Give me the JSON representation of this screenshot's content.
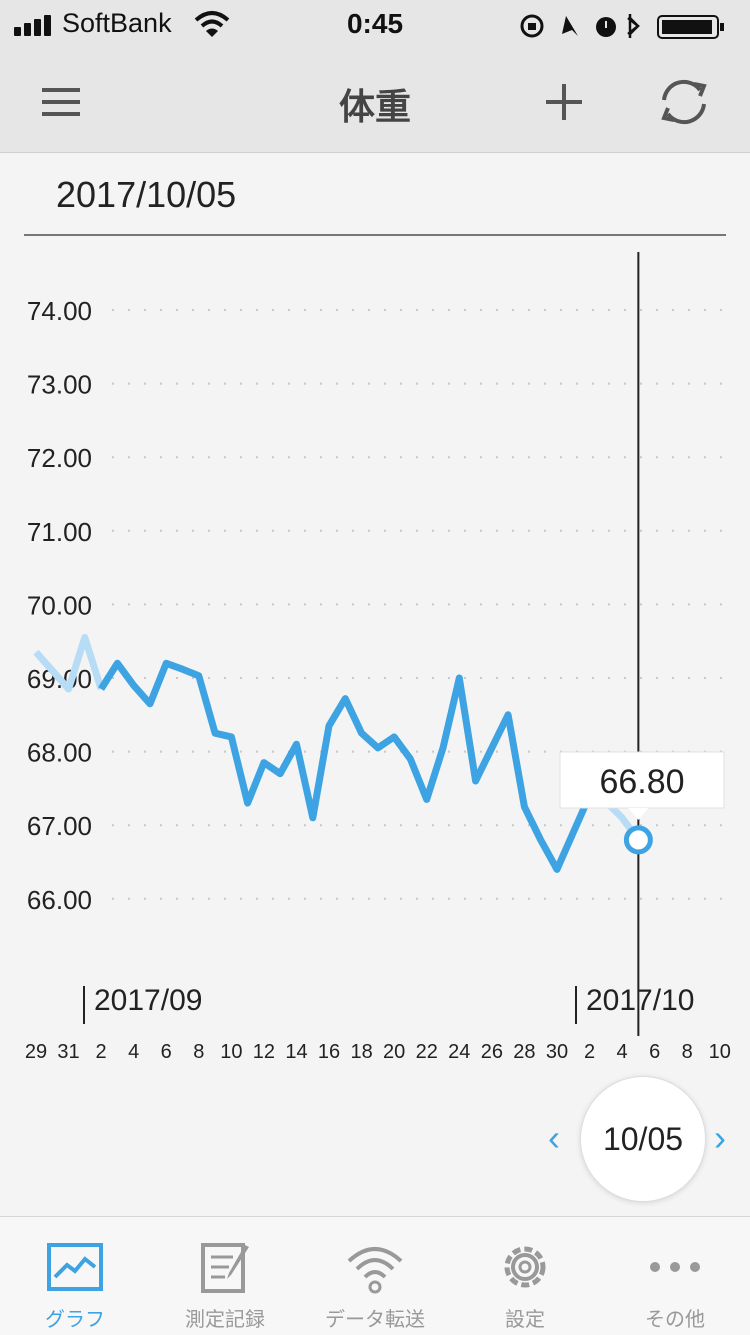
{
  "status": {
    "carrier": "SoftBank",
    "time": "0:45"
  },
  "nav": {
    "title": "体重",
    "icons": [
      "menu-icon",
      "add-icon",
      "sync-icon"
    ]
  },
  "selected_date": "2017/10/05",
  "chart_data": {
    "type": "line",
    "title": "",
    "xlabel": "",
    "ylabel": "",
    "ylim": [
      65.0,
      74.5
    ],
    "y_ticks": [
      "74.00",
      "73.00",
      "72.00",
      "71.00",
      "70.00",
      "69.00",
      "68.00",
      "67.00",
      "66.00"
    ],
    "x_tick_labels": [
      "29",
      "31",
      "2",
      "4",
      "6",
      "8",
      "10",
      "12",
      "14",
      "16",
      "18",
      "20",
      "22",
      "24",
      "26",
      "28",
      "30",
      "2",
      "4",
      "6",
      "8",
      "10"
    ],
    "month_markers": [
      "2017/09",
      "2017/10"
    ],
    "grid": true,
    "series": [
      {
        "dates": [
          "2017/08/29",
          "2017/08/30",
          "2017/08/31",
          "2017/09/01",
          "2017/09/02",
          "2017/09/03",
          "2017/09/04",
          "2017/09/05",
          "2017/09/06",
          "2017/09/07",
          "2017/09/08",
          "2017/09/09",
          "2017/09/10",
          "2017/09/11",
          "2017/09/12",
          "2017/09/13",
          "2017/09/14",
          "2017/09/15",
          "2017/09/16",
          "2017/09/17",
          "2017/09/18",
          "2017/09/19",
          "2017/09/20",
          "2017/09/21",
          "2017/09/22",
          "2017/09/23",
          "2017/09/24",
          "2017/09/25",
          "2017/09/26",
          "2017/09/27",
          "2017/09/28",
          "2017/09/29",
          "2017/09/30",
          "2017/10/01",
          "2017/10/02",
          "2017/10/03",
          "2017/10/04",
          "2017/10/05"
        ],
        "values": [
          69.35,
          69.1,
          68.85,
          69.55,
          68.85,
          69.2,
          68.9,
          68.65,
          69.2,
          69.12,
          69.03,
          68.25,
          68.2,
          67.3,
          67.85,
          67.7,
          68.1,
          67.1,
          68.35,
          68.72,
          68.25,
          68.05,
          68.2,
          67.9,
          67.35,
          68.05,
          69.0,
          67.6,
          68.05,
          68.5,
          67.25,
          66.8,
          66.4,
          66.9,
          67.4,
          67.32,
          67.1,
          66.8
        ]
      }
    ],
    "highlight": {
      "date": "2017/10/05",
      "value": "66.80"
    },
    "colors": {
      "line": "#3ea3e2",
      "line_faded": "#b7dcf5",
      "grid": "#c8c8c8",
      "cursor": "#222222"
    }
  },
  "date_picker": {
    "value": "10/05",
    "prev": "‹",
    "next": "›"
  },
  "tabs": [
    {
      "label": "グラフ",
      "icon": "graph-icon",
      "active": true
    },
    {
      "label": "測定記録",
      "icon": "record-edit-icon",
      "active": false
    },
    {
      "label": "データ転送",
      "icon": "wireless-transfer-icon",
      "active": false
    },
    {
      "label": "設定",
      "icon": "gear-icon",
      "active": false
    },
    {
      "label": "その他",
      "icon": "more-icon",
      "active": false
    }
  ]
}
